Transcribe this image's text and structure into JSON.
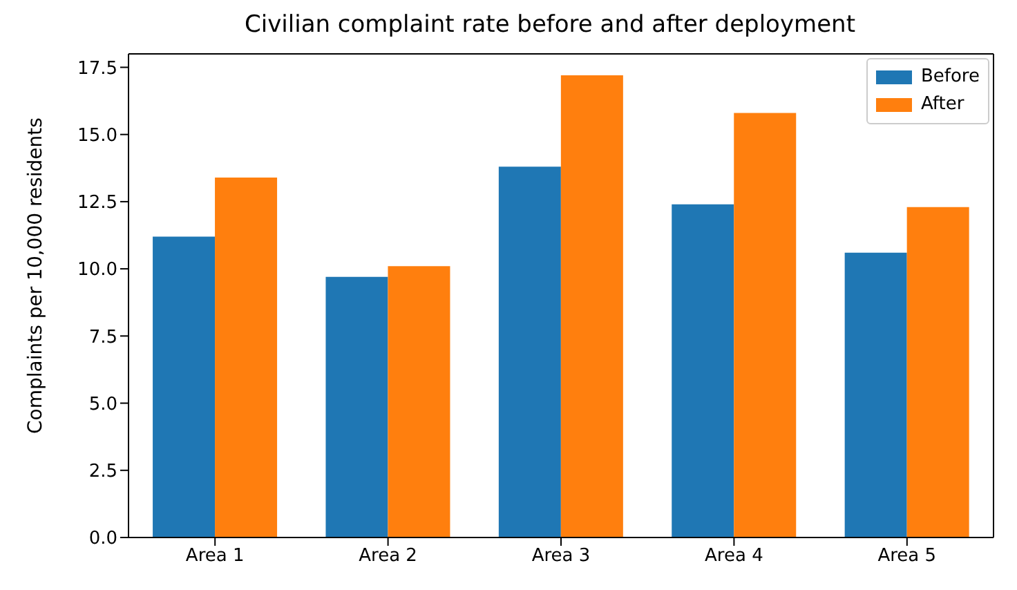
{
  "chart_data": {
    "type": "bar",
    "title": "Civilian complaint rate before and after deployment",
    "ylabel": "Complaints per 10,000 residents",
    "categories": [
      "Area 1",
      "Area 2",
      "Area 3",
      "Area 4",
      "Area 5"
    ],
    "series": [
      {
        "name": "Before",
        "color": "#1f77b4",
        "values": [
          11.2,
          9.7,
          13.8,
          12.4,
          10.6
        ]
      },
      {
        "name": "After",
        "color": "#ff7f0e",
        "values": [
          13.4,
          10.1,
          17.2,
          15.8,
          12.3
        ]
      }
    ],
    "ylim": [
      0,
      18
    ],
    "yticks": [
      {
        "value": 0,
        "label": "0.0"
      },
      2.5,
      {
        "value": 5,
        "label": "5.0"
      },
      7.5,
      {
        "value": 10,
        "label": "10.0"
      },
      12.5,
      {
        "value": 15,
        "label": "15.0"
      },
      17.5
    ],
    "legend": "top right"
  }
}
